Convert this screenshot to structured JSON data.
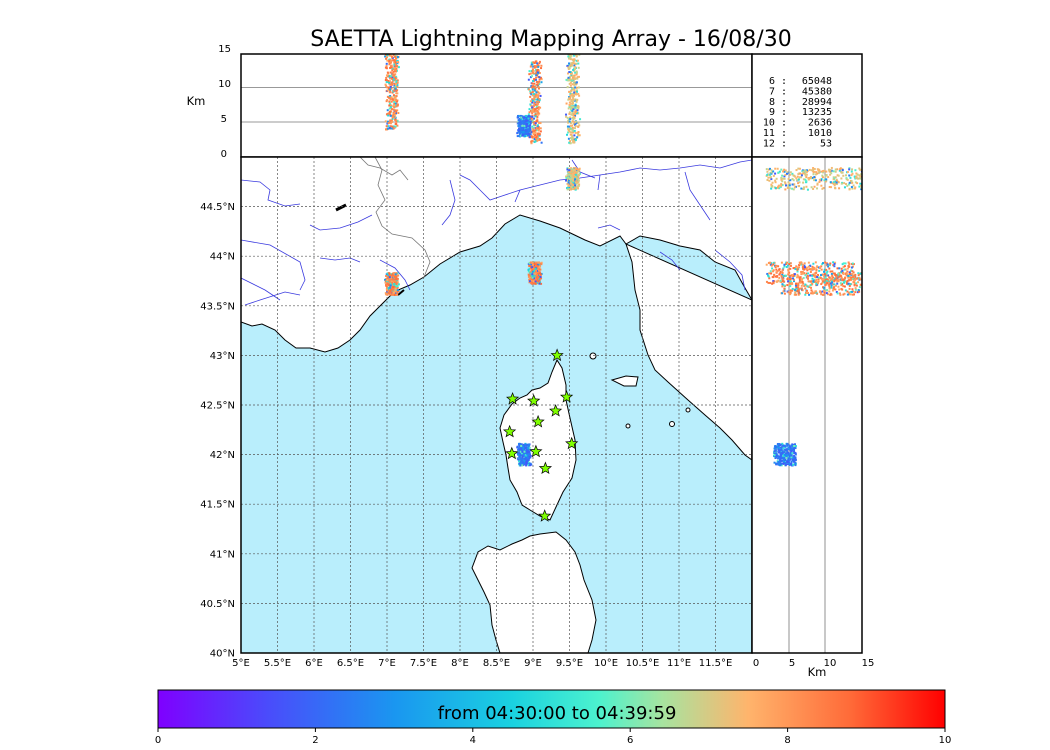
{
  "title": "SAETTA Lightning Mapping Array - 16/08/30",
  "colors": {
    "sea": "#b9eefc",
    "land": "#ffffff",
    "rivers": "#3a3adf",
    "borders": "#777777",
    "station": "#7fff00",
    "flash_high": "#ff5a2a",
    "flash_mid": "#33dfc5",
    "flash_low": "#1a8cf0"
  },
  "map": {
    "lon_ticks": [
      "5°E",
      "5.5°E",
      "6°E",
      "6.5°E",
      "7°E",
      "7.5°E",
      "8°E",
      "8.5°E",
      "9°E",
      "9.5°E",
      "10°E",
      "10.5°E",
      "11°E",
      "11.5°E"
    ],
    "lat_ticks": [
      "40°N",
      "40.5°N",
      "41°N",
      "41.5°N",
      "42°N",
      "42.5°N",
      "43°N",
      "43.5°N",
      "44°N",
      "44.5°N"
    ],
    "grid": "dotted"
  },
  "altitude_panel": {
    "ylabel": "Km",
    "y_ticks": [
      "0",
      "5",
      "10",
      "15"
    ]
  },
  "side_panel": {
    "xlabel": "Km",
    "x_ticks": [
      "0",
      "5",
      "10",
      "15"
    ]
  },
  "station_counts": [
    {
      "label": "6 :",
      "value": "65048",
      "color": "#000000"
    },
    {
      "label": "7 :",
      "value": "45380",
      "color": "#ff0000"
    },
    {
      "label": "8 :",
      "value": "28994",
      "color": "#000000"
    },
    {
      "label": "9 :",
      "value": "13235",
      "color": "#000000"
    },
    {
      "label": "10 :",
      "value": "2636",
      "color": "#000000"
    },
    {
      "label": "11 :",
      "value": "1010",
      "color": "#000000"
    },
    {
      "label": "12 :",
      "value": "53",
      "color": "#000000"
    }
  ],
  "colorbar": {
    "label": "from 04:30:00 to 04:39:59",
    "ticks": [
      "0",
      "2",
      "4",
      "6",
      "8",
      "10"
    ],
    "range": [
      0,
      10
    ]
  },
  "chart_data": {
    "type": "scatter",
    "title": "SAETTA Lightning Mapping Array - 16/08/30",
    "lon_range": [
      5,
      12
    ],
    "lat_range": [
      40,
      45
    ],
    "altitude_range_km": [
      0,
      15
    ],
    "time_range_min": [
      0,
      10
    ],
    "stations": [
      {
        "lon": 9.33,
        "lat": 43.0
      },
      {
        "lon": 8.72,
        "lat": 42.56
      },
      {
        "lon": 9.01,
        "lat": 42.54
      },
      {
        "lon": 9.46,
        "lat": 42.58
      },
      {
        "lon": 9.31,
        "lat": 42.44
      },
      {
        "lon": 9.07,
        "lat": 42.33
      },
      {
        "lon": 8.68,
        "lat": 42.23
      },
      {
        "lon": 9.53,
        "lat": 42.11
      },
      {
        "lon": 8.71,
        "lat": 42.01
      },
      {
        "lon": 9.04,
        "lat": 42.03
      },
      {
        "lon": 9.17,
        "lat": 41.86
      },
      {
        "lon": 9.16,
        "lat": 41.38
      }
    ],
    "clusters": [
      {
        "lon": 7.07,
        "lat": 43.72,
        "alt_min_km": 4,
        "alt_max_km": 15,
        "dominant_time_min": 8
      },
      {
        "lon": 9.03,
        "lat": 43.83,
        "alt_min_km": 2,
        "alt_max_km": 14,
        "dominant_time_min": 8
      },
      {
        "lon": 9.55,
        "lat": 44.78,
        "alt_min_km": 2,
        "alt_max_km": 15,
        "dominant_time_min": 7
      },
      {
        "lon": 8.88,
        "lat": 42.0,
        "alt_min_km": 3,
        "alt_max_km": 6,
        "dominant_time_min": 2
      }
    ]
  }
}
